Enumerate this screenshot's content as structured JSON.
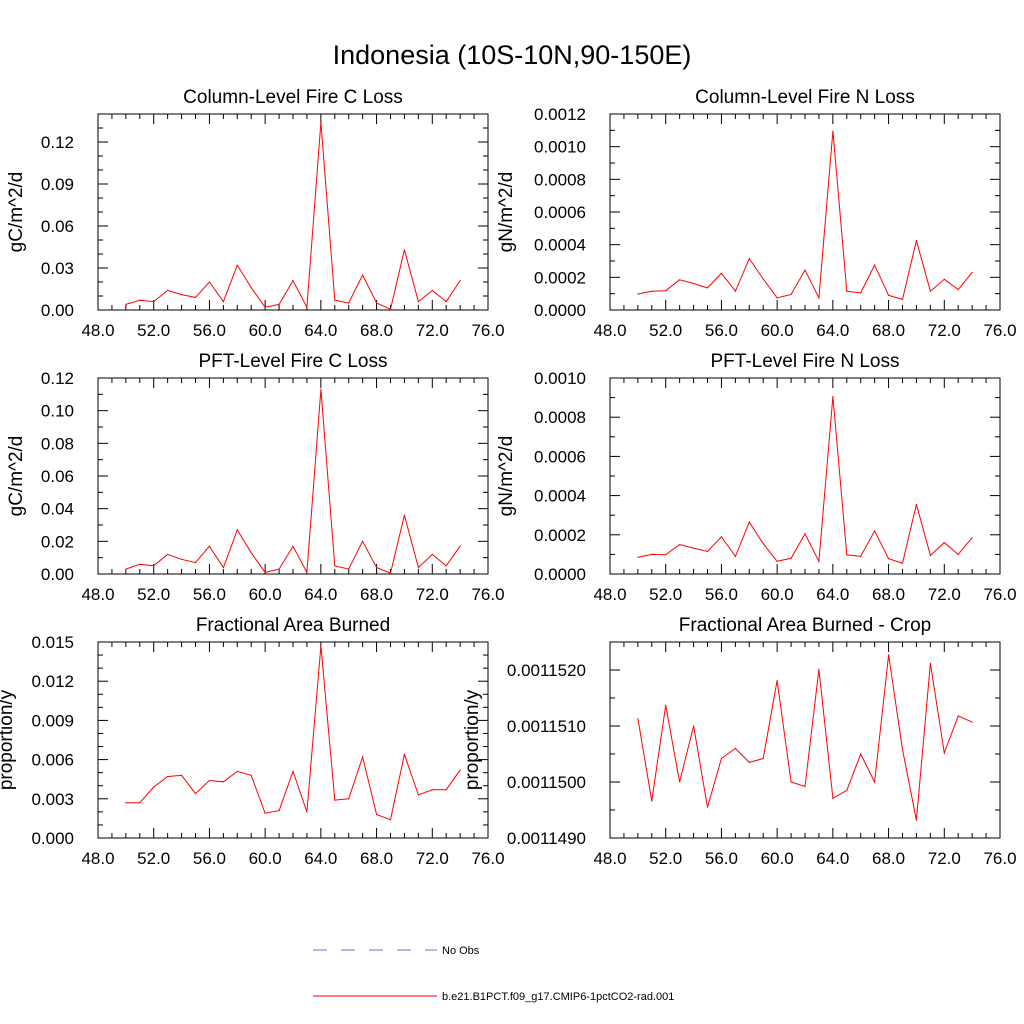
{
  "figure_title": "Indonesia (10S-10N,90-150E)",
  "colors": {
    "model": "#ff0000",
    "obs": "#6b6bd6"
  },
  "legend": [
    {
      "label": "No Obs",
      "color": "#6b6bd6",
      "style": "dashed"
    },
    {
      "label": "b.e21.B1PCT.f09_g17.CMIP6-1pctCO2-rad.001",
      "color": "#ff0000",
      "style": "solid"
    }
  ],
  "chart_data": [
    {
      "type": "line",
      "title": "Column-Level Fire C Loss",
      "xlabel": "",
      "ylabel": "gC/m^2/d",
      "xlim": [
        48,
        76
      ],
      "ylim": [
        0,
        0.14
      ],
      "xticks": [
        48,
        52,
        56,
        60,
        64,
        68,
        72,
        76
      ],
      "xtick_labels": [
        "48.0",
        "52.0",
        "56.0",
        "60.0",
        "64.0",
        "68.0",
        "72.0",
        "76.0"
      ],
      "yticks": [
        0,
        0.03,
        0.06,
        0.09,
        0.12
      ],
      "ytick_labels": [
        "0.00",
        "0.03",
        "0.06",
        "0.09",
        "0.12"
      ],
      "series": [
        {
          "name": "b.e21.B1PCT.f09_g17.CMIP6-1pctCO2-rad.001",
          "x": [
            50,
            51,
            52,
            53,
            54,
            55,
            56,
            57,
            58,
            59,
            60,
            61,
            62,
            63,
            64,
            65,
            66,
            67,
            68,
            69,
            70,
            71,
            72,
            73,
            74
          ],
          "values": [
            0.004,
            0.007,
            0.006,
            0.014,
            0.011,
            0.009,
            0.02,
            0.006,
            0.032,
            0.016,
            0.002,
            0.004,
            0.021,
            0.002,
            0.134,
            0.007,
            0.005,
            0.025,
            0.005,
            0.0005,
            0.043,
            0.006,
            0.014,
            0.006,
            0.021
          ]
        }
      ]
    },
    {
      "type": "line",
      "title": "Column-Level Fire N Loss",
      "xlabel": "",
      "ylabel": "gN/m^2/d",
      "xlim": [
        48,
        76
      ],
      "ylim": [
        0,
        0.0012
      ],
      "xticks": [
        48,
        52,
        56,
        60,
        64,
        68,
        72,
        76
      ],
      "xtick_labels": [
        "48.0",
        "52.0",
        "56.0",
        "60.0",
        "64.0",
        "68.0",
        "72.0",
        "76.0"
      ],
      "yticks": [
        0,
        0.0002,
        0.0004,
        0.0006,
        0.0008,
        0.001,
        0.0012
      ],
      "ytick_labels": [
        "0.0000",
        "0.0002",
        "0.0004",
        "0.0006",
        "0.0008",
        "0.0010",
        "0.0012"
      ],
      "series": [
        {
          "name": "b.e21.B1PCT.f09_g17.CMIP6-1pctCO2-rad.001",
          "x": [
            50,
            51,
            52,
            53,
            54,
            55,
            56,
            57,
            58,
            59,
            60,
            61,
            62,
            63,
            64,
            65,
            66,
            67,
            68,
            69,
            70,
            71,
            72,
            73,
            74
          ],
          "values": [
            9.8e-05,
            0.000115,
            0.000118,
            0.000185,
            0.000162,
            0.000135,
            0.000225,
            0.000115,
            0.000315,
            0.00019,
            7.5e-05,
            9.5e-05,
            0.000245,
            7.5e-05,
            0.001095,
            0.000115,
            0.000105,
            0.000275,
            9e-05,
            6.5e-05,
            0.000425,
            0.000115,
            0.000188,
            0.000125,
            0.00023
          ]
        }
      ]
    },
    {
      "type": "line",
      "title": "PFT-Level Fire C Loss",
      "xlabel": "",
      "ylabel": "gC/m^2/d",
      "xlim": [
        48,
        76
      ],
      "ylim": [
        0,
        0.12
      ],
      "xticks": [
        48,
        52,
        56,
        60,
        64,
        68,
        72,
        76
      ],
      "xtick_labels": [
        "48.0",
        "52.0",
        "56.0",
        "60.0",
        "64.0",
        "68.0",
        "72.0",
        "76.0"
      ],
      "yticks": [
        0,
        0.02,
        0.04,
        0.06,
        0.08,
        0.1,
        0.12
      ],
      "ytick_labels": [
        "0.00",
        "0.02",
        "0.04",
        "0.06",
        "0.08",
        "0.10",
        "0.12"
      ],
      "series": [
        {
          "name": "b.e21.B1PCT.f09_g17.CMIP6-1pctCO2-rad.001",
          "x": [
            50,
            51,
            52,
            53,
            54,
            55,
            56,
            57,
            58,
            59,
            60,
            61,
            62,
            63,
            64,
            65,
            66,
            67,
            68,
            69,
            70,
            71,
            72,
            73,
            74
          ],
          "values": [
            0.003,
            0.006,
            0.005,
            0.012,
            0.009,
            0.007,
            0.017,
            0.004,
            0.027,
            0.013,
            0.001,
            0.003,
            0.017,
            0.001,
            0.113,
            0.005,
            0.003,
            0.02,
            0.004,
            0.0005,
            0.036,
            0.004,
            0.012,
            0.005,
            0.017
          ]
        }
      ]
    },
    {
      "type": "line",
      "title": "PFT-Level Fire N Loss",
      "xlabel": "",
      "ylabel": "gN/m^2/d",
      "xlim": [
        48,
        76
      ],
      "ylim": [
        0,
        0.001
      ],
      "xticks": [
        48,
        52,
        56,
        60,
        64,
        68,
        72,
        76
      ],
      "xtick_labels": [
        "48.0",
        "52.0",
        "56.0",
        "60.0",
        "64.0",
        "68.0",
        "72.0",
        "76.0"
      ],
      "yticks": [
        0,
        0.0002,
        0.0004,
        0.0006,
        0.0008,
        0.001
      ],
      "ytick_labels": [
        "0.0000",
        "0.0002",
        "0.0004",
        "0.0006",
        "0.0008",
        "0.0010"
      ],
      "series": [
        {
          "name": "b.e21.B1PCT.f09_g17.CMIP6-1pctCO2-rad.001",
          "x": [
            50,
            51,
            52,
            53,
            54,
            55,
            56,
            57,
            58,
            59,
            60,
            61,
            62,
            63,
            64,
            65,
            66,
            67,
            68,
            69,
            70,
            71,
            72,
            73,
            74
          ],
          "values": [
            8.5e-05,
            0.0001,
            9.8e-05,
            0.00015,
            0.000132,
            0.000115,
            0.00019,
            9e-05,
            0.000265,
            0.000155,
            6.5e-05,
            8e-05,
            0.000205,
            6.5e-05,
            0.000905,
            9.8e-05,
            9e-05,
            0.00022,
            7.8e-05,
            5.5e-05,
            0.000355,
            9.5e-05,
            0.00016,
            0.0001,
            0.000185
          ]
        }
      ]
    },
    {
      "type": "line",
      "title": "Fractional Area Burned",
      "xlabel": "",
      "ylabel": "proportion/y",
      "xlim": [
        48,
        76
      ],
      "ylim": [
        0,
        0.015
      ],
      "xticks": [
        48,
        52,
        56,
        60,
        64,
        68,
        72,
        76
      ],
      "xtick_labels": [
        "48.0",
        "52.0",
        "56.0",
        "60.0",
        "64.0",
        "68.0",
        "72.0",
        "76.0"
      ],
      "yticks": [
        0,
        0.003,
        0.006,
        0.009,
        0.012,
        0.015
      ],
      "ytick_labels": [
        "0.000",
        "0.003",
        "0.006",
        "0.009",
        "0.012",
        "0.015"
      ],
      "series": [
        {
          "name": "b.e21.B1PCT.f09_g17.CMIP6-1pctCO2-rad.001",
          "x": [
            50,
            51,
            52,
            53,
            54,
            55,
            56,
            57,
            58,
            59,
            60,
            61,
            62,
            63,
            64,
            65,
            66,
            67,
            68,
            69,
            70,
            71,
            72,
            73,
            74
          ],
          "values": [
            0.0027,
            0.0027,
            0.0039,
            0.0047,
            0.0048,
            0.0034,
            0.0044,
            0.0043,
            0.0051,
            0.0048,
            0.0019,
            0.0021,
            0.0051,
            0.002,
            0.0147,
            0.0029,
            0.003,
            0.0062,
            0.0018,
            0.0014,
            0.0064,
            0.0033,
            0.0037,
            0.0037,
            0.0052
          ]
        }
      ]
    },
    {
      "type": "line",
      "title": "Fractional Area Burned - Crop",
      "xlabel": "",
      "ylabel": "proportion/y",
      "xlim": [
        48,
        76
      ],
      "ylim": [
        0.001149,
        0.0011525
      ],
      "xticks": [
        48,
        52,
        56,
        60,
        64,
        68,
        72,
        76
      ],
      "xtick_labels": [
        "48.0",
        "52.0",
        "56.0",
        "60.0",
        "64.0",
        "68.0",
        "72.0",
        "76.0"
      ],
      "yticks": [
        0.001149,
        0.00115,
        0.001151,
        0.001152
      ],
      "ytick_labels": [
        "0.0011490",
        "0.0011500",
        "0.0011510",
        "0.0011520"
      ],
      "series": [
        {
          "name": "b.e21.B1PCT.f09_g17.CMIP6-1pctCO2-rad.001",
          "x": [
            50,
            51,
            52,
            53,
            54,
            55,
            56,
            57,
            58,
            59,
            60,
            61,
            62,
            63,
            64,
            65,
            66,
            67,
            68,
            69,
            70,
            71,
            72,
            73,
            74
          ],
          "values": [
            0.00115113,
            0.00114966,
            0.00115137,
            0.00115,
            0.001151,
            0.00114955,
            0.00115042,
            0.0011506,
            0.00115035,
            0.00115042,
            0.00115181,
            0.00115,
            0.00114992,
            0.00115201,
            0.00114971,
            0.00114985,
            0.0011505,
            0.00115,
            0.00115227,
            0.00115058,
            0.00114932,
            0.00115212,
            0.00115052,
            0.00115118,
            0.00115107
          ]
        }
      ]
    }
  ]
}
